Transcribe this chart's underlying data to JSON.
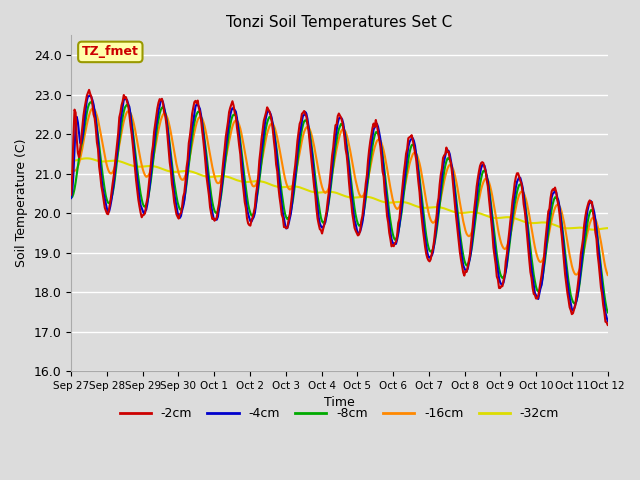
{
  "title": "Tonzi Soil Temperatures Set C",
  "xlabel": "Time",
  "ylabel": "Soil Temperature (C)",
  "ylim": [
    16.0,
    24.5
  ],
  "yticks": [
    16.0,
    17.0,
    18.0,
    19.0,
    20.0,
    21.0,
    22.0,
    23.0,
    24.0
  ],
  "bg_color": "#dcdcdc",
  "plot_bg_color": "#dcdcdc",
  "line_colors": {
    "-2cm": "#cc0000",
    "-4cm": "#0000cc",
    "-8cm": "#00aa00",
    "-16cm": "#ff8800",
    "-32cm": "#dddd00"
  },
  "annotation_text": "TZ_fmet",
  "annotation_bg": "#ffffaa",
  "annotation_border": "#999900",
  "xtick_labels": [
    "Sep 27",
    "Sep 28",
    "Sep 29",
    "Sep 30",
    "Oct 1",
    "Oct 2",
    "Oct 3",
    "Oct 4",
    "Oct 5",
    "Oct 6",
    "Oct 7",
    "Oct 8",
    "Oct 9",
    "Oct 10",
    "Oct 11",
    "Oct 12"
  ],
  "legend_labels": [
    "-2cm",
    "-4cm",
    "-8cm",
    "-16cm",
    "-32cm"
  ],
  "n_points": 480
}
